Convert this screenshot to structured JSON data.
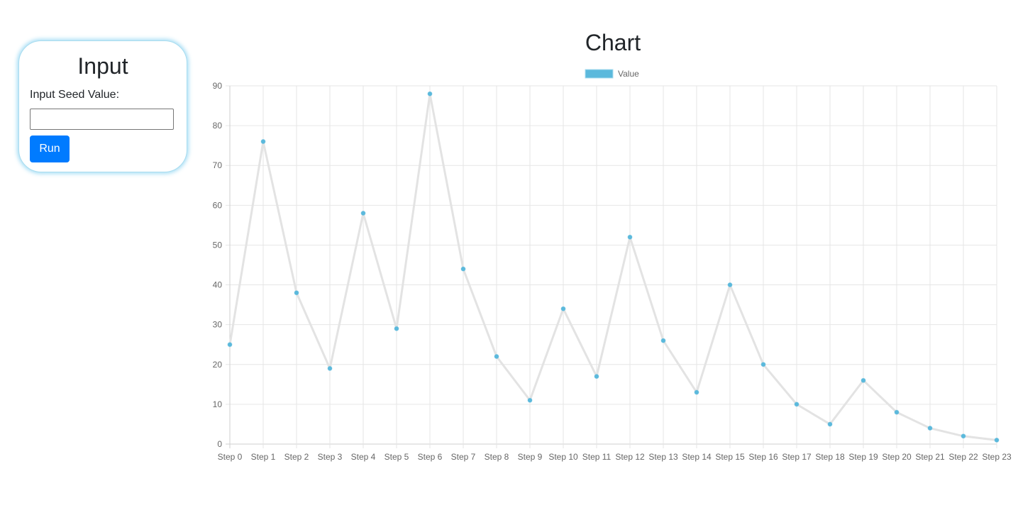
{
  "input_panel": {
    "title": "Input",
    "seed_label": "Input Seed Value:",
    "seed_value": "",
    "run_label": "Run"
  },
  "chart_title": "Chart",
  "colors": {
    "accent": "#007bff",
    "point": "#5bb9dc",
    "line": "#e3e3e3",
    "grid": "#e6e6e6",
    "card_glow": "#a9dcef"
  },
  "chart_data": {
    "type": "line",
    "title": "Chart",
    "xlabel": "",
    "ylabel": "",
    "categories": [
      "Step 0",
      "Step 1",
      "Step 2",
      "Step 3",
      "Step 4",
      "Step 5",
      "Step 6",
      "Step 7",
      "Step 8",
      "Step 9",
      "Step 10",
      "Step 11",
      "Step 12",
      "Step 13",
      "Step 14",
      "Step 15",
      "Step 16",
      "Step 17",
      "Step 18",
      "Step 19",
      "Step 20",
      "Step 21",
      "Step 22",
      "Step 23"
    ],
    "series": [
      {
        "name": "Value",
        "values": [
          25,
          76,
          38,
          19,
          58,
          29,
          88,
          44,
          22,
          11,
          34,
          17,
          52,
          26,
          13,
          40,
          20,
          10,
          5,
          16,
          8,
          4,
          2,
          1
        ]
      }
    ],
    "ylim": [
      0,
      90
    ],
    "yticks": [
      0,
      10,
      20,
      30,
      40,
      50,
      60,
      70,
      80,
      90
    ],
    "grid": true,
    "legend": "top-center"
  }
}
